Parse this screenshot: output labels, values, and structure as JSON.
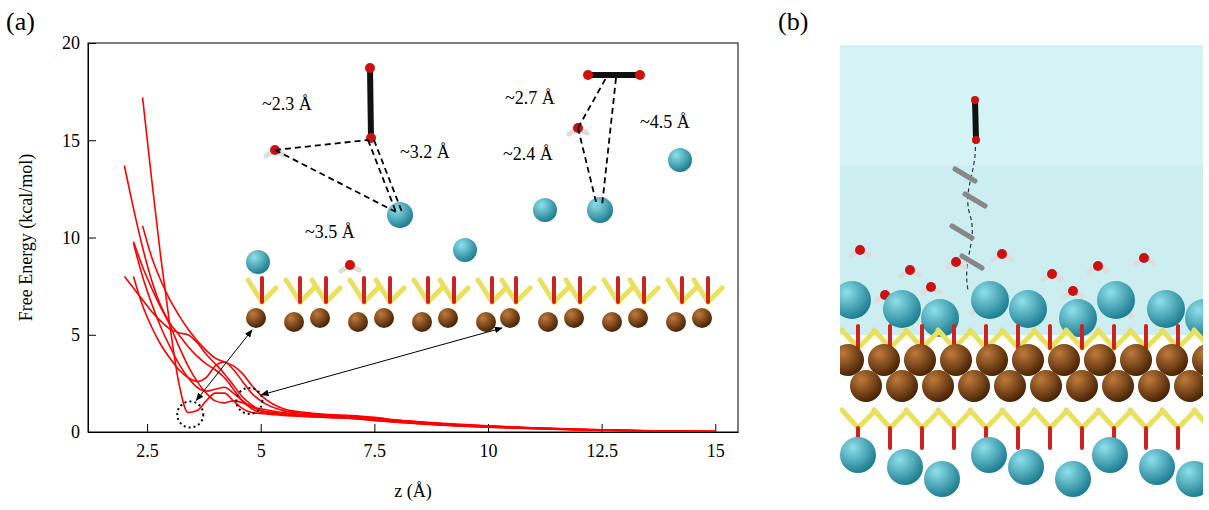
{
  "chart_data": {
    "type": "line",
    "panel_labels": [
      "(a)",
      "(b)"
    ],
    "x_label": "z (Å)",
    "y_label": "Free Energy (kcal/mol)",
    "color": "#ff0000",
    "xlim": [
      1.2,
      15.5
    ],
    "ylim": [
      0,
      20
    ],
    "xticks": [
      2.5,
      5,
      7.5,
      10,
      12.5,
      15
    ],
    "yticks": [
      0,
      5,
      10,
      15,
      20
    ],
    "x": [
      2.0,
      2.2,
      2.4,
      2.6,
      2.8,
      3.0,
      3.2,
      3.4,
      3.6,
      3.8,
      4.0,
      4.2,
      4.4,
      4.6,
      4.8,
      5.0,
      5.5,
      6.0,
      6.5,
      7.0,
      7.5,
      8.0,
      9.0,
      10.0,
      11.0,
      12.0,
      13.0,
      14.0,
      15.0
    ],
    "series": [
      {
        "values": [
          null,
          null,
          17.2,
          13.0,
          9.0,
          5.5,
          2.5,
          1.0,
          1.1,
          1.6,
          2.0,
          2.0,
          1.6,
          1.2,
          1.0,
          0.95,
          0.85,
          0.8,
          0.75,
          0.7,
          0.6,
          0.5,
          0.35,
          0.25,
          0.18,
          0.12,
          0.08,
          0.04,
          0.02
        ]
      },
      {
        "values": [
          13.7,
          11.5,
          9.5,
          7.8,
          6.5,
          5.6,
          5.0,
          4.4,
          3.9,
          3.5,
          3.2,
          2.8,
          2.2,
          1.6,
          1.2,
          1.0,
          0.9,
          0.85,
          0.8,
          0.75,
          0.65,
          0.55,
          0.4,
          0.28,
          0.2,
          0.13,
          0.08,
          0.05,
          0.02
        ]
      },
      {
        "values": [
          8.0,
          7.4,
          6.8,
          6.2,
          5.7,
          5.3,
          5.1,
          5.0,
          4.6,
          4.0,
          3.5,
          3.0,
          2.4,
          1.8,
          1.4,
          1.1,
          0.95,
          0.9,
          0.85,
          0.8,
          0.7,
          0.6,
          0.42,
          0.3,
          0.2,
          0.14,
          0.09,
          0.05,
          0.02
        ]
      },
      {
        "values": [
          null,
          9.7,
          8.0,
          6.6,
          5.4,
          4.4,
          3.5,
          2.8,
          2.3,
          2.1,
          2.2,
          2.3,
          2.0,
          1.6,
          1.3,
          1.1,
          0.9,
          0.8,
          0.75,
          0.7,
          0.6,
          0.5,
          0.36,
          0.25,
          0.17,
          0.11,
          0.07,
          0.04,
          0.02
        ]
      },
      {
        "values": [
          null,
          8.0,
          6.5,
          5.4,
          4.5,
          3.8,
          3.2,
          2.8,
          2.6,
          2.8,
          3.4,
          3.6,
          3.2,
          2.6,
          2.0,
          1.6,
          1.1,
          0.95,
          0.85,
          0.8,
          0.7,
          0.6,
          0.42,
          0.3,
          0.2,
          0.13,
          0.08,
          0.05,
          0.02
        ]
      },
      {
        "values": [
          null,
          null,
          10.6,
          9.0,
          7.8,
          6.8,
          6.0,
          5.3,
          4.7,
          4.2,
          3.8,
          3.6,
          3.4,
          3.0,
          2.4,
          1.9,
          1.2,
          1.0,
          0.9,
          0.85,
          0.75,
          0.62,
          0.45,
          0.32,
          0.22,
          0.14,
          0.09,
          0.05,
          0.02
        ]
      },
      {
        "values": [
          null,
          9.8,
          8.5,
          7.4,
          6.4,
          5.5,
          4.4,
          3.4,
          2.6,
          2.0,
          1.6,
          1.5,
          1.6,
          1.5,
          1.3,
          1.2,
          1.0,
          0.85,
          0.8,
          0.75,
          0.65,
          0.55,
          0.38,
          0.27,
          0.18,
          0.12,
          0.08,
          0.04,
          0.02
        ]
      }
    ],
    "minima": [
      {
        "x": 3.45,
        "y": 0.9
      },
      {
        "x": 4.75,
        "y": 1.6
      }
    ],
    "inset_labels": [
      [
        "~2.3 Å",
        "~3.2 Å",
        "~3.5 Å"
      ],
      [
        "~2.7 Å",
        "~2.4 Å",
        "~4.5 Å"
      ]
    ]
  }
}
